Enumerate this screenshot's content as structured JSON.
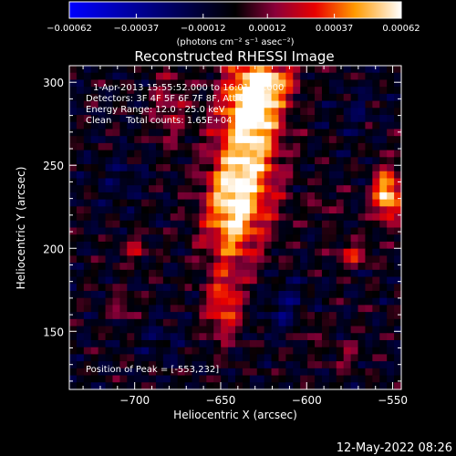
{
  "chart_data": {
    "type": "heatmap",
    "title": "Reconstructed RHESSI Image",
    "xlabel": "Heliocentric X (arcsec)",
    "ylabel": "Heliocentric Y (arcsec)",
    "xlim": [
      -738,
      -545
    ],
    "ylim": [
      115,
      310
    ],
    "x_ticks": [
      -700,
      -650,
      -600,
      -550
    ],
    "x_tick_labels": [
      "−700",
      "−650",
      "−600",
      "−550"
    ],
    "y_ticks": [
      150,
      200,
      250,
      300
    ],
    "y_tick_labels": [
      "150",
      "200",
      "250",
      "300"
    ],
    "colorbar": {
      "ticks": [
        -0.00062,
        -0.00037,
        -0.00012,
        0.00012,
        0.00037,
        0.00062
      ],
      "tick_labels": [
        "−0.00062",
        "−0.00037",
        "−0.00012",
        "0.00012",
        "0.00037",
        "0.00062"
      ],
      "unit_label": "(photons cm⁻² s⁻¹ asec⁻²)",
      "range": [
        -0.00062,
        0.00062
      ]
    },
    "annotations": [
      "1-Apr-2013 15:55:52.000 to 16:01:52.000",
      "Detectors: 3F 4F 5F 6F 7F 8F, Att 0",
      "Energy Range: 12.0 - 25.0 keV",
      "Clean     Total counts: 1.65E+04"
    ],
    "peak_label": "Position of Peak = [-553,232]",
    "peak": [
      -553,
      232
    ],
    "sources": [
      {
        "x": -634,
        "y": 260,
        "sx": 13,
        "sy": 34,
        "amp": 0.00055
      },
      {
        "x": -630,
        "y": 290,
        "sx": 10,
        "sy": 14,
        "amp": 0.00045
      },
      {
        "x": -645,
        "y": 220,
        "sx": 11,
        "sy": 22,
        "amp": 0.00045
      },
      {
        "x": -618,
        "y": 302,
        "sx": 10,
        "sy": 8,
        "amp": 0.00032
      },
      {
        "x": -648,
        "y": 165,
        "sx": 7,
        "sy": 14,
        "amp": 0.00038
      },
      {
        "x": -553,
        "y": 232,
        "sx": 6,
        "sy": 11,
        "amp": 0.00062
      },
      {
        "x": -573,
        "y": 196,
        "sx": 7,
        "sy": 5,
        "amp": 0.0003
      },
      {
        "x": -680,
        "y": 285,
        "sx": 7,
        "sy": 16,
        "amp": 0.00022
      },
      {
        "x": -700,
        "y": 200,
        "sx": 6,
        "sy": 6,
        "amp": 0.00022
      },
      {
        "x": -707,
        "y": 165,
        "sx": 5,
        "sy": 6,
        "amp": 0.00018
      },
      {
        "x": -598,
        "y": 150,
        "sx": 5,
        "sy": 8,
        "amp": 0.00018
      },
      {
        "x": -578,
        "y": 135,
        "sx": 6,
        "sy": 6,
        "amp": 0.00016
      },
      {
        "x": -590,
        "y": 225,
        "sx": 6,
        "sy": 6,
        "amp": 0.00014
      },
      {
        "x": -612,
        "y": 165,
        "sx": 10,
        "sy": 12,
        "amp": -0.00016
      },
      {
        "x": -710,
        "y": 240,
        "sx": 10,
        "sy": 10,
        "amp": -0.0001
      },
      {
        "x": -685,
        "y": 145,
        "sx": 9,
        "sy": 9,
        "amp": -0.0001
      },
      {
        "x": -572,
        "y": 282,
        "sx": 8,
        "sy": 10,
        "amp": -0.0001
      }
    ]
  },
  "footer": {
    "timestamp": "12-May-2022 08:26"
  }
}
